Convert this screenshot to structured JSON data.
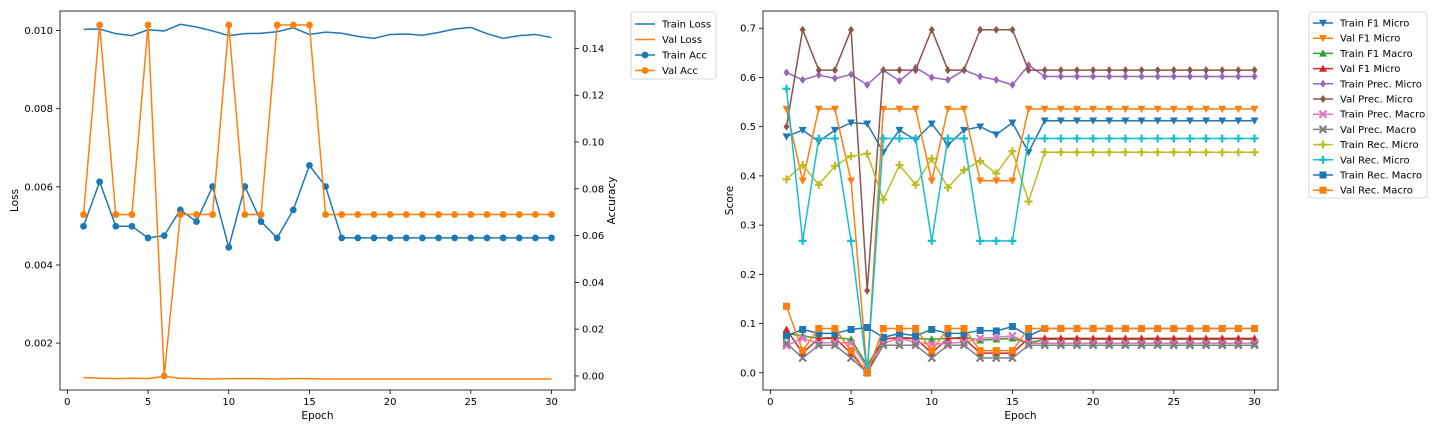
{
  "chart_data": [
    {
      "type": "line",
      "xlabel": "Epoch",
      "ylabel": "Loss",
      "ylabel_right": "Accuracy",
      "xlim": [
        1,
        30
      ],
      "ylim_left": [
        0.0008,
        0.0105
      ],
      "ylim_right": [
        -0.006,
        0.156
      ],
      "xticks": [
        "0",
        "5",
        "10",
        "15",
        "20",
        "25",
        "30"
      ],
      "yticks_left": [
        "0.002",
        "0.004",
        "0.006",
        "0.008",
        "0.010"
      ],
      "yticks_right": [
        "0.00",
        "0.02",
        "0.04",
        "0.06",
        "0.08",
        "0.10",
        "0.12",
        "0.14"
      ],
      "legend_position": "outside-right",
      "x": [
        1,
        2,
        3,
        4,
        5,
        6,
        7,
        8,
        9,
        10,
        11,
        12,
        13,
        14,
        15,
        16,
        17,
        18,
        19,
        20,
        21,
        22,
        23,
        24,
        25,
        26,
        27,
        28,
        29,
        30
      ],
      "series": [
        {
          "name": "Train Loss",
          "axis": "left",
          "color": "#1f77b4",
          "marker": "none",
          "values": [
            0.01003,
            0.01004,
            0.00992,
            0.00987,
            0.01002,
            0.00999,
            0.01016,
            0.01009,
            0.00999,
            0.00987,
            0.00992,
            0.00993,
            0.00997,
            0.01007,
            0.0099,
            0.00996,
            0.00993,
            0.00985,
            0.0098,
            0.0099,
            0.00991,
            0.00988,
            0.00995,
            0.01004,
            0.01008,
            0.00992,
            0.0098,
            0.00987,
            0.0099,
            0.00982
          ]
        },
        {
          "name": "Val Loss",
          "axis": "left",
          "color": "#ff7f0e",
          "marker": "none",
          "values": [
            0.00112,
            0.0011,
            0.00109,
            0.0011,
            0.00109,
            0.00115,
            0.0011,
            0.00109,
            0.00108,
            0.00109,
            0.00109,
            0.00109,
            0.00108,
            0.00109,
            0.00109,
            0.00108,
            0.00108,
            0.00108,
            0.00108,
            0.00108,
            0.00108,
            0.00108,
            0.00108,
            0.00108,
            0.00108,
            0.00108,
            0.00108,
            0.00108,
            0.00108,
            0.00108
          ]
        },
        {
          "name": "Train Acc",
          "axis": "right",
          "color": "#1f77b4",
          "marker": "circle",
          "values": [
            0.064,
            0.083,
            0.064,
            0.064,
            0.059,
            0.06,
            0.071,
            0.066,
            0.081,
            0.055,
            0.081,
            0.066,
            0.059,
            0.071,
            0.09,
            0.081,
            0.059,
            0.059,
            0.059,
            0.059,
            0.059,
            0.059,
            0.059,
            0.059,
            0.059,
            0.059,
            0.059,
            0.059,
            0.059,
            0.059
          ]
        },
        {
          "name": "Val Acc",
          "axis": "right",
          "color": "#ff7f0e",
          "marker": "circle",
          "values": [
            0.069,
            0.15,
            0.069,
            0.069,
            0.15,
            0.0,
            0.069,
            0.069,
            0.069,
            0.15,
            0.069,
            0.069,
            0.15,
            0.15,
            0.15,
            0.069,
            0.069,
            0.069,
            0.069,
            0.069,
            0.069,
            0.069,
            0.069,
            0.069,
            0.069,
            0.069,
            0.069,
            0.069,
            0.069,
            0.069
          ]
        }
      ]
    },
    {
      "type": "line",
      "xlabel": "Epoch",
      "ylabel": "Score",
      "xlim": [
        1,
        30
      ],
      "ylim": [
        -0.035,
        0.735
      ],
      "xticks": [
        "0",
        "5",
        "10",
        "15",
        "20",
        "25",
        "30"
      ],
      "yticks": [
        "0.0",
        "0.1",
        "0.2",
        "0.3",
        "0.4",
        "0.5",
        "0.6",
        "0.7"
      ],
      "legend_position": "outside-right",
      "x": [
        1,
        2,
        3,
        4,
        5,
        6,
        7,
        8,
        9,
        10,
        11,
        12,
        13,
        14,
        15,
        16,
        17,
        18,
        19,
        20,
        21,
        22,
        23,
        24,
        25,
        26,
        27,
        28,
        29,
        30
      ],
      "series": [
        {
          "name": "Train F1 Micro",
          "color": "#1f77b4",
          "marker": "tri-down",
          "values": [
            0.48,
            0.493,
            0.47,
            0.493,
            0.508,
            0.506,
            0.448,
            0.493,
            0.473,
            0.506,
            0.463,
            0.493,
            0.5,
            0.484,
            0.508,
            0.448,
            0.512,
            0.512,
            0.512,
            0.512,
            0.512,
            0.512,
            0.512,
            0.512,
            0.512,
            0.512,
            0.512,
            0.512,
            0.512,
            0.512
          ]
        },
        {
          "name": "Val F1 Micro",
          "color": "#ff7f0e",
          "marker": "tri-down",
          "values": [
            0.536,
            0.39,
            0.536,
            0.536,
            0.39,
            0.0,
            0.536,
            0.536,
            0.536,
            0.39,
            0.536,
            0.536,
            0.39,
            0.39,
            0.39,
            0.536,
            0.536,
            0.536,
            0.536,
            0.536,
            0.536,
            0.536,
            0.536,
            0.536,
            0.536,
            0.536,
            0.536,
            0.536,
            0.536,
            0.536
          ]
        },
        {
          "name": "Train F1 Macro",
          "color": "#2ca02c",
          "marker": "tri-up",
          "values": [
            0.08,
            0.075,
            0.07,
            0.072,
            0.068,
            0.015,
            0.068,
            0.072,
            0.07,
            0.068,
            0.07,
            0.072,
            0.066,
            0.068,
            0.07,
            0.06,
            0.068,
            0.068,
            0.068,
            0.068,
            0.068,
            0.068,
            0.068,
            0.068,
            0.068,
            0.068,
            0.068,
            0.068,
            0.068,
            0.068
          ]
        },
        {
          "name": "Val F1 Micro",
          "color": "#d62728",
          "marker": "tri-up",
          "values": [
            0.088,
            0.04,
            0.07,
            0.07,
            0.04,
            0.0,
            0.07,
            0.07,
            0.07,
            0.04,
            0.07,
            0.07,
            0.04,
            0.04,
            0.04,
            0.07,
            0.07,
            0.07,
            0.07,
            0.07,
            0.07,
            0.07,
            0.07,
            0.07,
            0.07,
            0.07,
            0.07,
            0.07,
            0.07,
            0.07
          ]
        },
        {
          "name": "Train Prec. Micro",
          "color": "#9467bd",
          "marker": "diamond",
          "values": [
            0.61,
            0.595,
            0.605,
            0.598,
            0.606,
            0.585,
            0.615,
            0.593,
            0.62,
            0.6,
            0.595,
            0.615,
            0.602,
            0.595,
            0.585,
            0.625,
            0.602,
            0.602,
            0.602,
            0.602,
            0.602,
            0.602,
            0.602,
            0.602,
            0.602,
            0.602,
            0.602,
            0.602,
            0.602,
            0.602
          ]
        },
        {
          "name": "Val Prec. Micro",
          "color": "#8c564b",
          "marker": "diamond",
          "values": [
            0.5,
            0.697,
            0.615,
            0.615,
            0.697,
            0.167,
            0.615,
            0.615,
            0.615,
            0.697,
            0.615,
            0.615,
            0.697,
            0.697,
            0.697,
            0.615,
            0.615,
            0.615,
            0.615,
            0.615,
            0.615,
            0.615,
            0.615,
            0.615,
            0.615,
            0.615,
            0.615,
            0.615,
            0.615,
            0.615
          ]
        },
        {
          "name": "Train Prec. Macro",
          "color": "#e377c2",
          "marker": "x",
          "values": [
            0.055,
            0.07,
            0.06,
            0.062,
            0.06,
            0.01,
            0.06,
            0.07,
            0.062,
            0.058,
            0.06,
            0.062,
            0.07,
            0.072,
            0.075,
            0.06,
            0.06,
            0.06,
            0.06,
            0.06,
            0.06,
            0.06,
            0.06,
            0.06,
            0.06,
            0.06,
            0.06,
            0.06,
            0.06,
            0.06
          ]
        },
        {
          "name": "Val Prec. Macro",
          "color": "#7f7f7f",
          "marker": "x",
          "values": [
            0.06,
            0.03,
            0.056,
            0.056,
            0.03,
            0.0,
            0.056,
            0.056,
            0.056,
            0.03,
            0.056,
            0.056,
            0.03,
            0.03,
            0.03,
            0.056,
            0.056,
            0.056,
            0.056,
            0.056,
            0.056,
            0.056,
            0.056,
            0.056,
            0.056,
            0.056,
            0.056,
            0.056,
            0.056,
            0.056
          ]
        },
        {
          "name": "Train Rec. Micro",
          "color": "#bcbd22",
          "marker": "plus",
          "values": [
            0.393,
            0.422,
            0.382,
            0.42,
            0.44,
            0.445,
            0.352,
            0.422,
            0.382,
            0.435,
            0.376,
            0.412,
            0.43,
            0.405,
            0.45,
            0.348,
            0.448,
            0.448,
            0.448,
            0.448,
            0.448,
            0.448,
            0.448,
            0.448,
            0.448,
            0.448,
            0.448,
            0.448,
            0.448,
            0.448
          ]
        },
        {
          "name": "Val Rec. Micro",
          "color": "#17becf",
          "marker": "plus",
          "values": [
            0.577,
            0.268,
            0.476,
            0.476,
            0.268,
            0.0,
            0.476,
            0.476,
            0.476,
            0.268,
            0.476,
            0.476,
            0.268,
            0.268,
            0.268,
            0.476,
            0.476,
            0.476,
            0.476,
            0.476,
            0.476,
            0.476,
            0.476,
            0.476,
            0.476,
            0.476,
            0.476,
            0.476,
            0.476,
            0.476
          ]
        },
        {
          "name": "Train Rec. Macro",
          "color": "#1f77b4",
          "marker": "square",
          "values": [
            0.075,
            0.088,
            0.08,
            0.08,
            0.088,
            0.092,
            0.072,
            0.08,
            0.075,
            0.088,
            0.08,
            0.08,
            0.086,
            0.085,
            0.094,
            0.075,
            0.09,
            0.09,
            0.09,
            0.09,
            0.09,
            0.09,
            0.09,
            0.09,
            0.09,
            0.09,
            0.09,
            0.09,
            0.09,
            0.09
          ]
        },
        {
          "name": "Val Rec. Macro",
          "color": "#ff7f0e",
          "marker": "square",
          "values": [
            0.135,
            0.045,
            0.09,
            0.09,
            0.045,
            0.0,
            0.09,
            0.09,
            0.09,
            0.045,
            0.09,
            0.09,
            0.045,
            0.045,
            0.045,
            0.09,
            0.09,
            0.09,
            0.09,
            0.09,
            0.09,
            0.09,
            0.09,
            0.09,
            0.09,
            0.09,
            0.09,
            0.09,
            0.09,
            0.09
          ]
        }
      ]
    }
  ]
}
